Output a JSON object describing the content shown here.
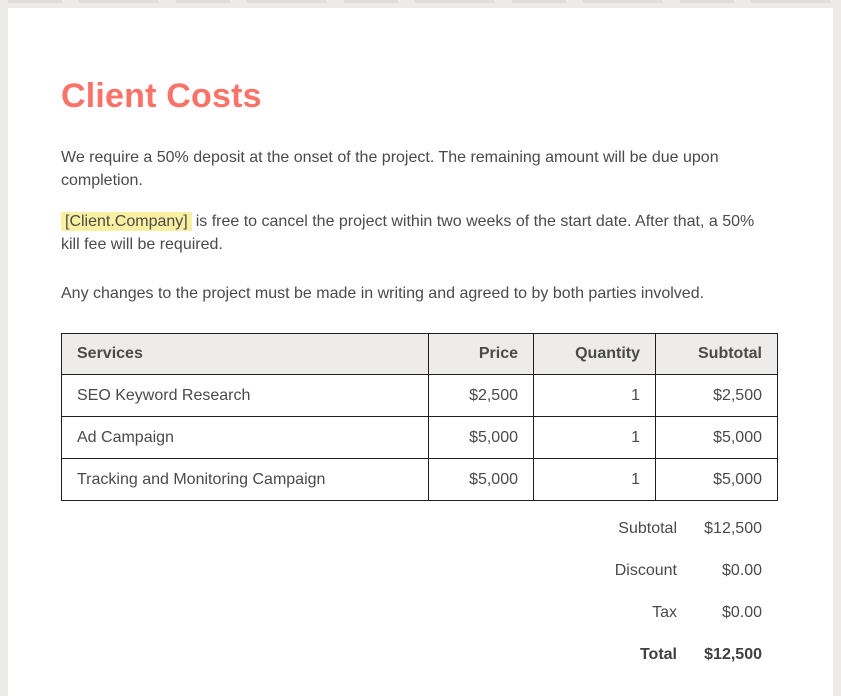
{
  "doc": {
    "title": "Client Costs",
    "paragraph1": "We require a 50% deposit at the onset of the project. The remaining amount will be due upon completion.",
    "merge_field_token": "[Client.Company]",
    "paragraph2_rest": "is free to cancel the project within two weeks of the start date. After that, a 50% kill fee will be required.",
    "paragraph3": "Any changes to the project must be made in writing and agreed to by both parties involved."
  },
  "pricing_table": {
    "columns": [
      "Services",
      "Price",
      "Quantity",
      "Subtotal"
    ],
    "rows": [
      {
        "service": "SEO Keyword Research",
        "price": "$2,500",
        "quantity": "1",
        "subtotal": "$2,500"
      },
      {
        "service": "Ad Campaign",
        "price": "$5,000",
        "quantity": "1",
        "subtotal": "$5,000"
      },
      {
        "service": "Tracking and Monitoring Campaign",
        "price": "$5,000",
        "quantity": "1",
        "subtotal": "$5,000"
      }
    ],
    "summary": [
      {
        "label": "Subtotal",
        "value": "$12,500"
      },
      {
        "label": "Discount",
        "value": "$0.00"
      },
      {
        "label": "Tax",
        "value": "$0.00"
      },
      {
        "label": "Total",
        "value": "$12,500"
      }
    ]
  },
  "colors": {
    "accent_title": "#fa7268",
    "merge_field_highlight": "#f9f0a2",
    "canvas_background": "#ecebe8",
    "table_border": "#1e1e1e",
    "table_header_background": "#edecea",
    "body_text": "#4a4a4a"
  }
}
